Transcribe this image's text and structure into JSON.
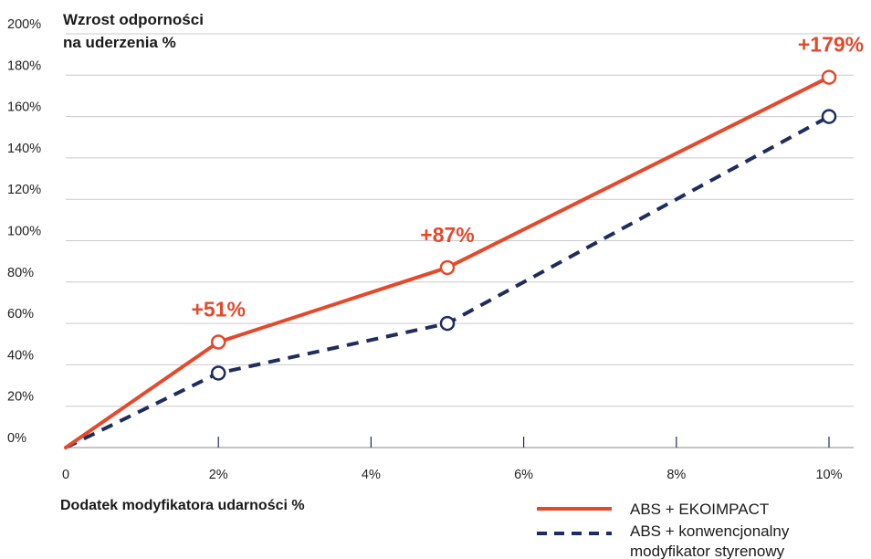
{
  "chart_data": {
    "type": "line",
    "y_title_lines": [
      "Wzrost odporności",
      "na uderzenia %"
    ],
    "xlabel": "Dodatek modyfikatora udarności %",
    "x_ticks": [
      {
        "value": 0,
        "label": "0"
      },
      {
        "value": 2,
        "label": "2%"
      },
      {
        "value": 4,
        "label": "4%"
      },
      {
        "value": 6,
        "label": "6%"
      },
      {
        "value": 8,
        "label": "8%"
      },
      {
        "value": 10,
        "label": "10%"
      }
    ],
    "y_ticks": [
      {
        "value": 0,
        "label": "0%"
      },
      {
        "value": 20,
        "label": "20%"
      },
      {
        "value": 40,
        "label": "40%"
      },
      {
        "value": 60,
        "label": "60%"
      },
      {
        "value": 80,
        "label": "80%"
      },
      {
        "value": 100,
        "label": "100%"
      },
      {
        "value": 120,
        "label": "120%"
      },
      {
        "value": 140,
        "label": "140%"
      },
      {
        "value": 160,
        "label": "160%"
      },
      {
        "value": 180,
        "label": "180%"
      },
      {
        "value": 200,
        "label": "200%"
      }
    ],
    "xlim": [
      0,
      10
    ],
    "ylim": [
      0,
      200
    ],
    "grid": "horizontal",
    "legend_position": "bottom-right",
    "series": [
      {
        "name": "ABS + EKOIMPACT",
        "color": "#e4492b",
        "style": "solid",
        "x": [
          0,
          2,
          5,
          10
        ],
        "y": [
          0,
          51,
          87,
          179
        ],
        "point_labels": [
          "",
          "+51%",
          "+87%",
          "+179%"
        ]
      },
      {
        "name_lines": [
          "ABS + konwencjonalny",
          "modyfikator styrenowy"
        ],
        "color": "#1f2d5c",
        "style": "dashed",
        "x": [
          0,
          2,
          5,
          10
        ],
        "y": [
          0,
          36,
          60,
          160
        ],
        "point_labels": [
          "",
          "",
          "",
          ""
        ]
      }
    ]
  }
}
